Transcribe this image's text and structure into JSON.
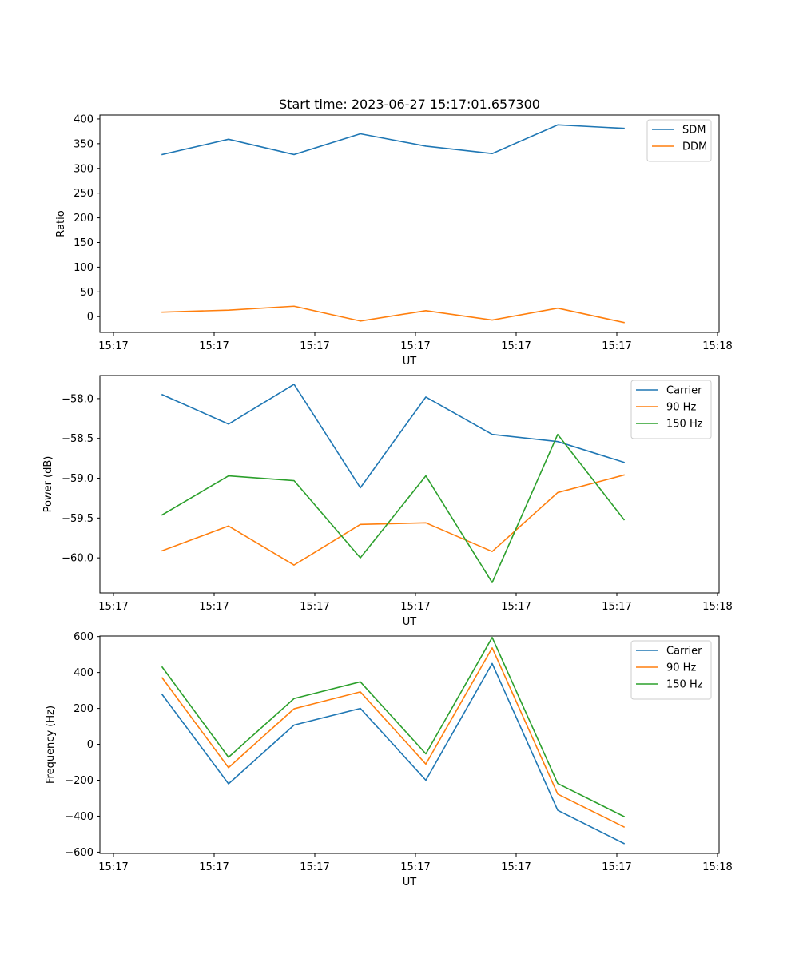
{
  "figure_title": "Start time: 2023-06-27 15:17:01.657300",
  "colors": {
    "blue": "#1f77b4",
    "orange": "#ff7f0e",
    "green": "#2ca02c"
  },
  "chart_data": [
    {
      "type": "line",
      "title": "Start time: 2023-06-27 15:17:01.657300",
      "xlabel": "UT",
      "ylabel": "Ratio",
      "x": [
        "15:17",
        "15:17",
        "15:17",
        "15:17",
        "15:17",
        "15:17",
        "15:17",
        "15:17"
      ],
      "xticks": [
        "15:17",
        "15:17",
        "15:17",
        "15:17",
        "15:17",
        "15:17",
        "15:18"
      ],
      "yticks": [
        "0",
        "50",
        "100",
        "150",
        "200",
        "250",
        "300",
        "350",
        "400"
      ],
      "ylim": [
        -32,
        408
      ],
      "grid": false,
      "legend": "top-right",
      "series": [
        {
          "name": "SDM",
          "color": "#1f77b4",
          "values": [
            328,
            359,
            328,
            370,
            345,
            330,
            388,
            381
          ]
        },
        {
          "name": "DDM",
          "color": "#ff7f0e",
          "values": [
            9,
            13,
            21,
            -9,
            12,
            -7,
            17,
            -12
          ]
        }
      ]
    },
    {
      "type": "line",
      "xlabel": "UT",
      "ylabel": "Power (dB)",
      "x": [
        "15:17",
        "15:17",
        "15:17",
        "15:17",
        "15:17",
        "15:17",
        "15:17",
        "15:17"
      ],
      "xticks": [
        "15:17",
        "15:17",
        "15:17",
        "15:17",
        "15:17",
        "15:17",
        "15:18"
      ],
      "yticks": [
        "−60.0",
        "−59.5",
        "−59.0",
        "−58.5",
        "−58.0"
      ],
      "ylim": [
        -60.44,
        -57.71
      ],
      "grid": false,
      "legend": "top-right",
      "series": [
        {
          "name": "Carrier",
          "color": "#1f77b4",
          "values": [
            -57.95,
            -58.32,
            -57.82,
            -59.12,
            -57.98,
            -58.45,
            -58.54,
            -58.8
          ]
        },
        {
          "name": "90 Hz",
          "color": "#ff7f0e",
          "values": [
            -59.91,
            -59.6,
            -60.09,
            -59.58,
            -59.56,
            -59.92,
            -59.18,
            -58.96
          ]
        },
        {
          "name": "150 Hz",
          "color": "#2ca02c",
          "values": [
            -59.46,
            -58.97,
            -59.03,
            -60.0,
            -58.97,
            -60.31,
            -58.45,
            -59.52
          ]
        }
      ]
    },
    {
      "type": "line",
      "xlabel": "UT",
      "ylabel": "Frequency (Hz)",
      "x": [
        "15:17",
        "15:17",
        "15:17",
        "15:17",
        "15:17",
        "15:17",
        "15:17",
        "15:17"
      ],
      "xticks": [
        "15:17",
        "15:17",
        "15:17",
        "15:17",
        "15:17",
        "15:17",
        "15:18"
      ],
      "yticks": [
        "−600",
        "−400",
        "−200",
        "0",
        "200",
        "400",
        "600"
      ],
      "ylim": [
        -607,
        603
      ],
      "grid": false,
      "legend": "top-right",
      "series": [
        {
          "name": "Carrier",
          "color": "#1f77b4",
          "values": [
            277,
            -220,
            107,
            200,
            -200,
            450,
            -367,
            -552
          ]
        },
        {
          "name": "90 Hz",
          "color": "#ff7f0e",
          "values": [
            370,
            -130,
            198,
            292,
            -110,
            537,
            -277,
            -460
          ]
        },
        {
          "name": "150 Hz",
          "color": "#2ca02c",
          "values": [
            430,
            -72,
            255,
            348,
            -53,
            595,
            -218,
            -402
          ]
        }
      ]
    }
  ]
}
